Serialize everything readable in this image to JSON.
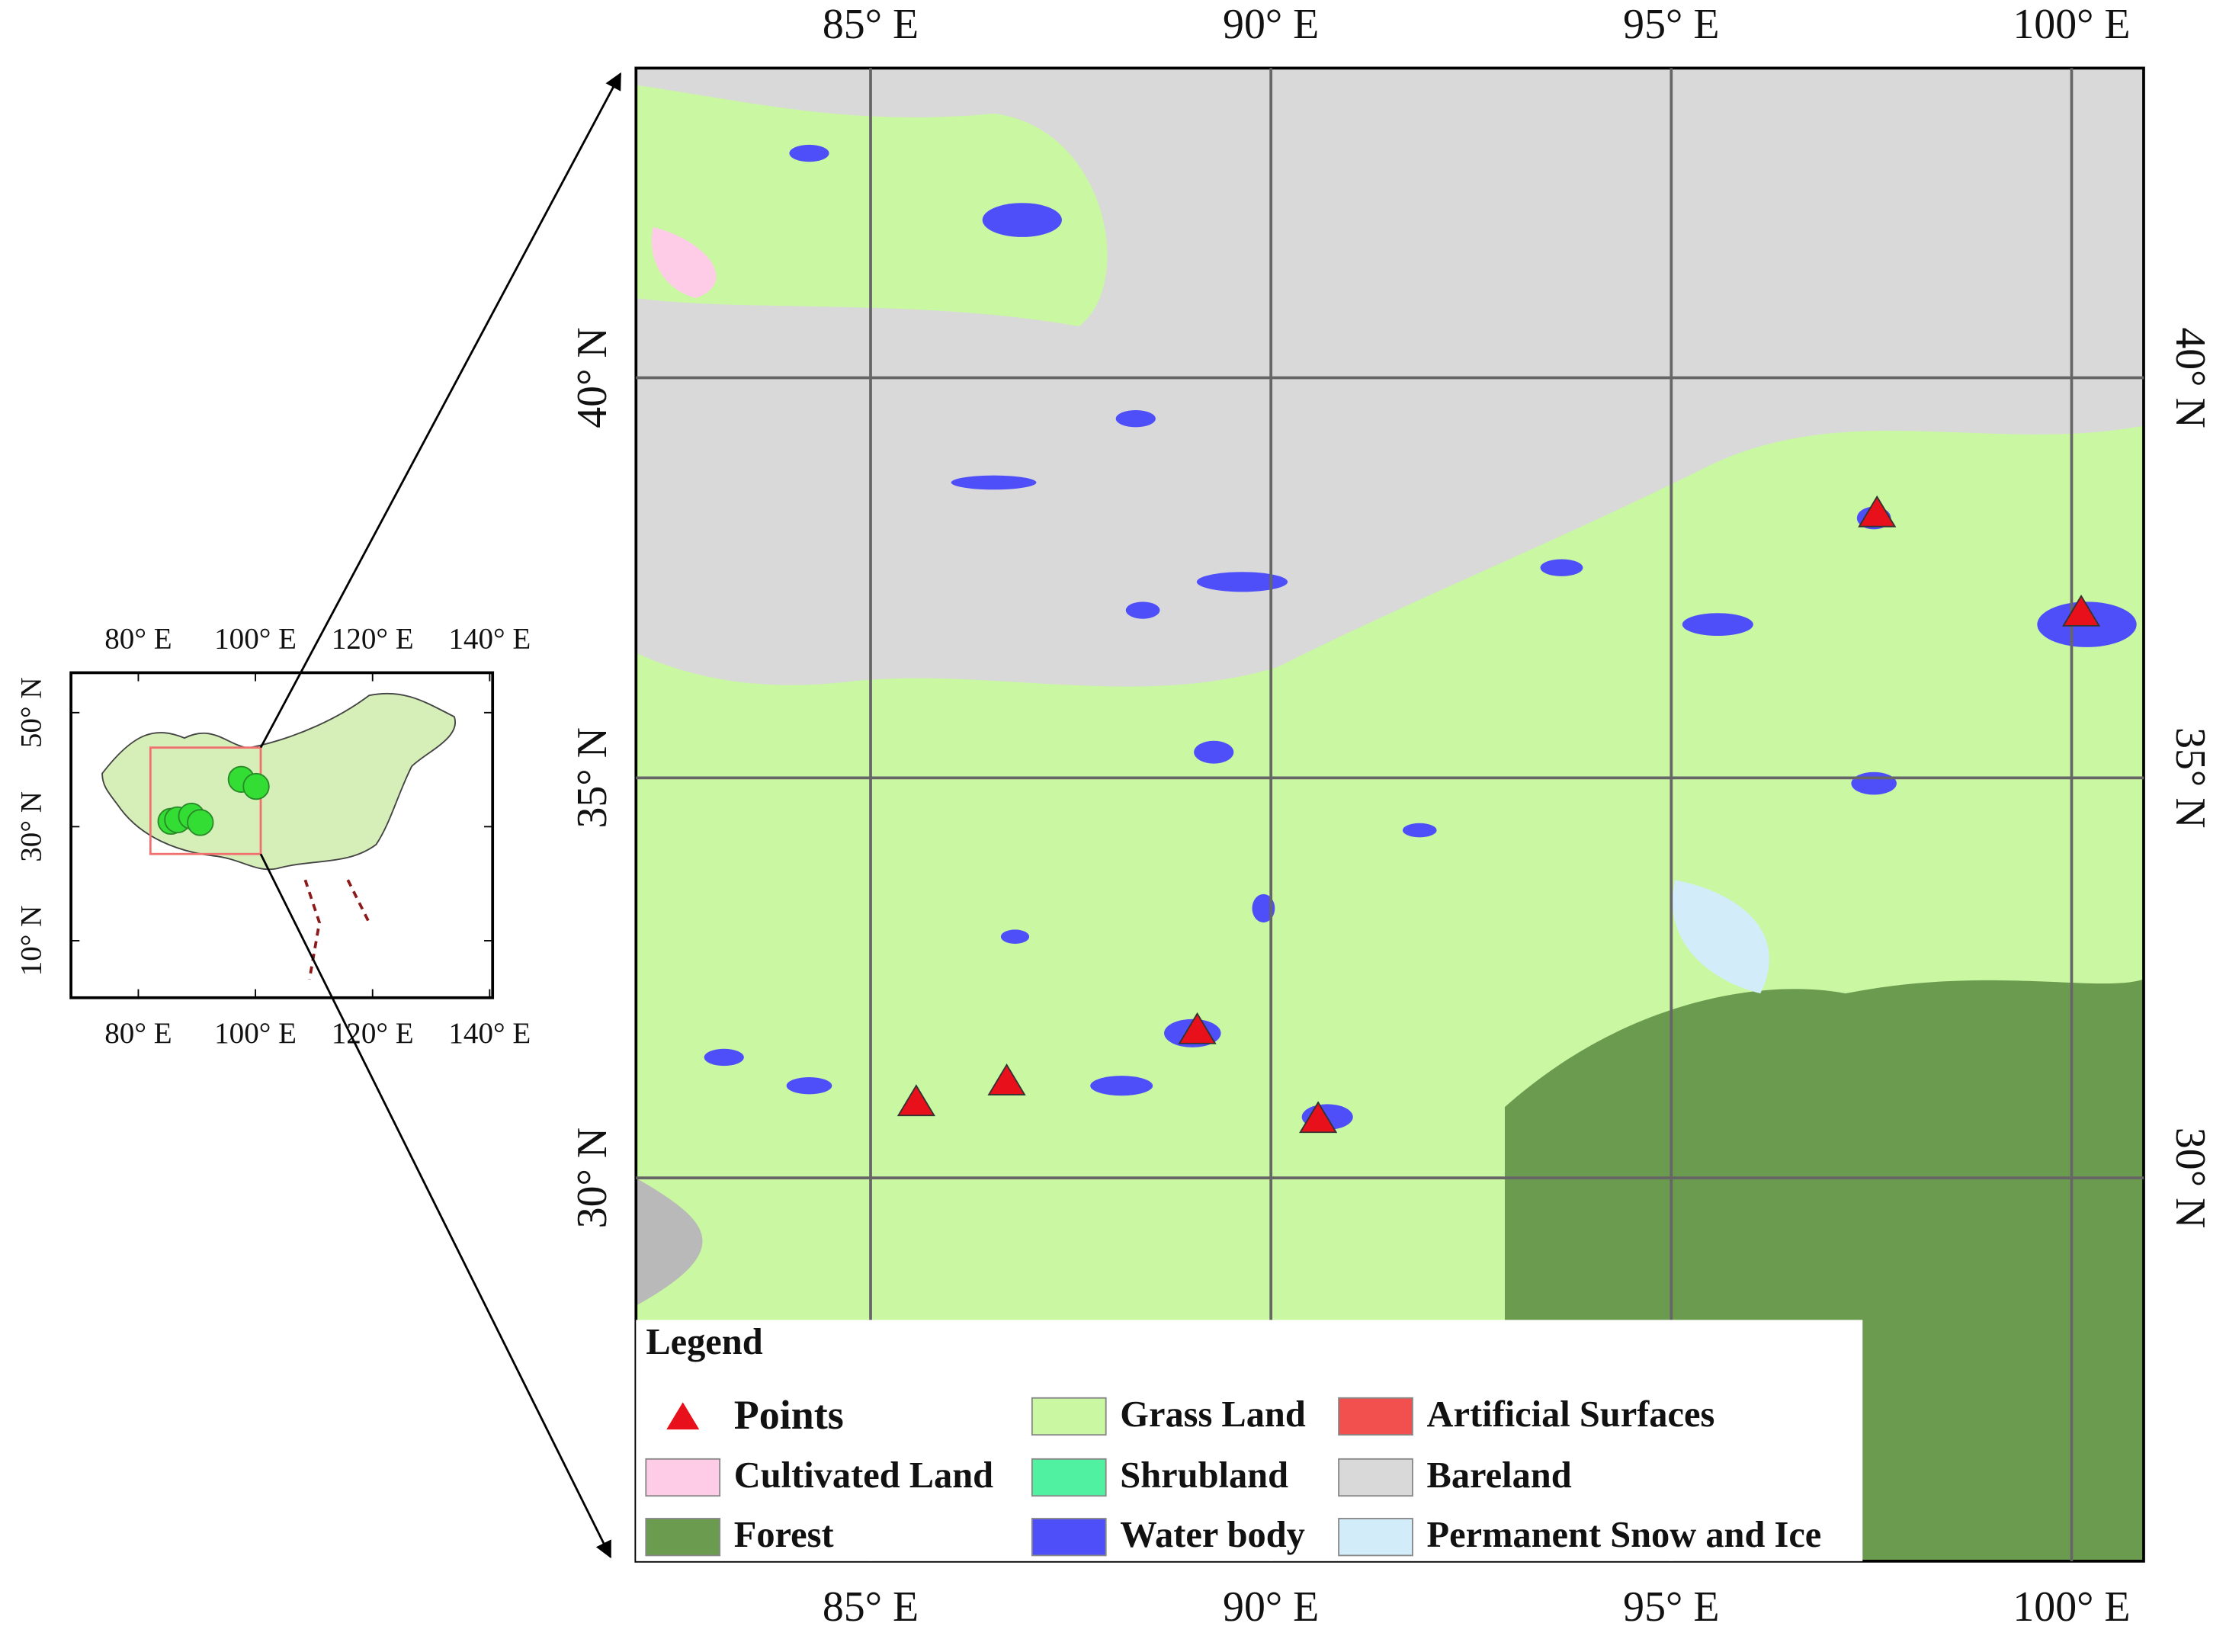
{
  "main_map": {
    "xlim": [
      82.07,
      100.9
    ],
    "ylim": [
      25.21,
      43.87
    ],
    "xticks": [
      {
        "value": 85,
        "label": "85° E"
      },
      {
        "value": 90,
        "label": "90° E"
      },
      {
        "value": 95,
        "label": "95° E"
      },
      {
        "value": 100,
        "label": "100° E"
      }
    ],
    "yticks": [
      {
        "value": 30,
        "label": "30° N"
      },
      {
        "value": 35,
        "label": "35° N"
      },
      {
        "value": 40,
        "label": "40° N"
      }
    ],
    "points": {
      "name": "Points",
      "color": "#e8101a",
      "lon": [
        85.57,
        86.7,
        89.08,
        90.59,
        97.57,
        100.12
      ],
      "lat": [
        30.94,
        31.2,
        31.84,
        30.73,
        38.3,
        37.06
      ]
    },
    "legend": {
      "title": "Legend",
      "items": [
        {
          "name": "Cultivated Land",
          "color": "#ffcce8"
        },
        {
          "name": "Forest",
          "color": "#6b9b4e"
        },
        {
          "name": "Grass Land",
          "color": "#c9f7a2"
        },
        {
          "name": "Shrubland",
          "color": "#50f2a2"
        },
        {
          "name": "Water body",
          "color": "#4f4ffa"
        },
        {
          "name": "Artificial Surfaces",
          "color": "#f24f4f"
        },
        {
          "name": "Bareland",
          "color": "#d9d9d9"
        },
        {
          "name": "Permanent Snow and Ice",
          "color": "#d2ecf9"
        }
      ]
    }
  },
  "inset_map": {
    "xlim": [
      68.5,
      140.5
    ],
    "ylim": [
      0,
      57
    ],
    "xticks": [
      {
        "value": 80,
        "label": "80° E"
      },
      {
        "value": 100,
        "label": "100° E"
      },
      {
        "value": 120,
        "label": "120° E"
      },
      {
        "value": 140,
        "label": "140° E"
      }
    ],
    "yticks": [
      {
        "value": 10,
        "label": "10° N"
      },
      {
        "value": 30,
        "label": "30° N"
      },
      {
        "value": 50,
        "label": "50° N"
      }
    ],
    "point_color": "#33dd33"
  }
}
